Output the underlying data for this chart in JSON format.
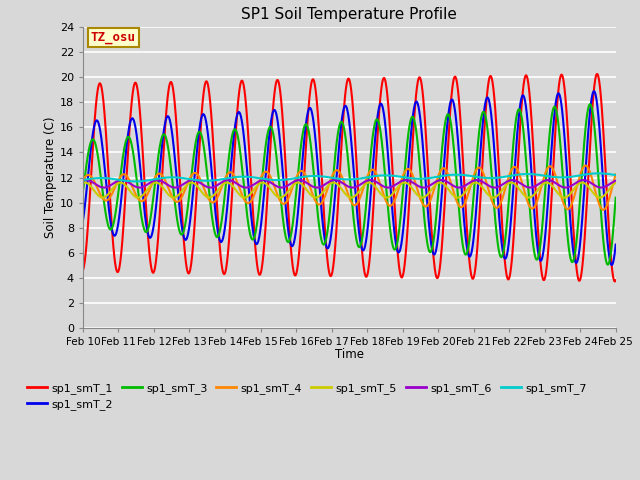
{
  "title": "SP1 Soil Temperature Profile",
  "xlabel": "Time",
  "ylabel": "Soil Temperature (C)",
  "xlim": [
    0,
    15
  ],
  "ylim": [
    0,
    24
  ],
  "yticks": [
    0,
    2,
    4,
    6,
    8,
    10,
    12,
    14,
    16,
    18,
    20,
    22,
    24
  ],
  "xtick_labels": [
    "Feb 10",
    "Feb 11",
    "Feb 12",
    "Feb 13",
    "Feb 14",
    "Feb 15",
    "Feb 16",
    "Feb 17",
    "Feb 18",
    "Feb 19",
    "Feb 20",
    "Feb 21",
    "Feb 22",
    "Feb 23",
    "Feb 24",
    "Feb 25"
  ],
  "annotation_text": "TZ_osu",
  "annotation_color": "#cc0000",
  "annotation_bg": "#ffffcc",
  "annotation_border": "#aa8800",
  "series_colors": [
    "#ff0000",
    "#0000ee",
    "#00bb00",
    "#ff8800",
    "#cccc00",
    "#9900cc",
    "#00cccc"
  ],
  "series_labels": [
    "sp1_smT_1",
    "sp1_smT_2",
    "sp1_smT_3",
    "sp1_smT_4",
    "sp1_smT_5",
    "sp1_smT_6",
    "sp1_smT_7"
  ],
  "bg_color": "#d8d8d8",
  "plot_bg_color": "#d8d8d8",
  "grid_color": "#ffffff",
  "figwidth": 6.4,
  "figheight": 4.8,
  "dpi": 100
}
